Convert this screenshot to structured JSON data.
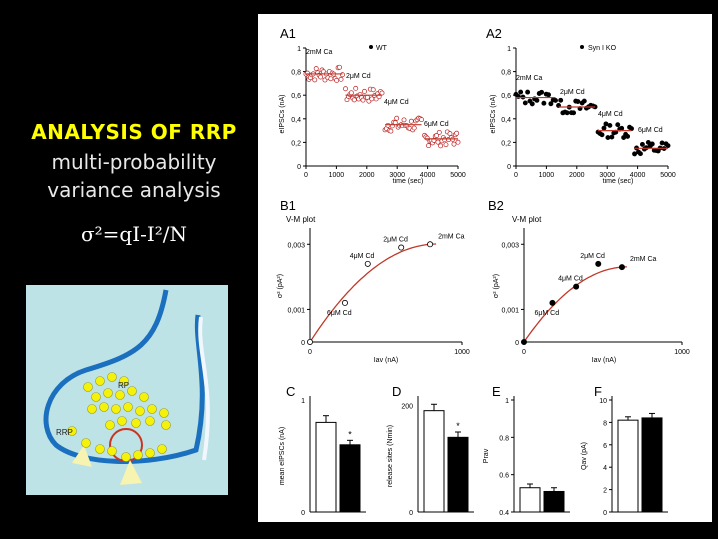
{
  "left": {
    "title": "ANALYSIS OF RRP",
    "subtitle_line1": "multi-probability",
    "subtitle_line2": "variance analysis",
    "formula": "σ²=qI-I²/N",
    "diagram": {
      "rp_label": "RP",
      "rrp_label": "RRP"
    }
  },
  "figure": {
    "panels": {
      "A1": "A1",
      "A2": "A2",
      "B1": "B1",
      "B2": "B2",
      "C": "C",
      "D": "D",
      "E": "E",
      "F": "F"
    },
    "A1_legend": "WT",
    "A2_legend": "Syn I KO",
    "conc_labels": [
      "2mM Ca",
      "2μM Cd",
      "4μM Cd",
      "6μM Cd"
    ],
    "A_xlabel": "time (sec)",
    "A_ylabel": "eIPSCs (nA)",
    "A_xticks": [
      "0",
      "1000",
      "2000",
      "3000",
      "4000",
      "5000"
    ],
    "A1_yticks": [
      "0",
      "0,2",
      "0,4",
      "0,6",
      "0,8",
      "1"
    ],
    "A2_yticks": [
      "0",
      "0,2",
      "0,4",
      "0,6",
      "0,8",
      "1"
    ],
    "B_title": "V-M plot",
    "B_xlabel": "Iav (nA)",
    "B_ylabel": "σ² (pA²)",
    "B_xticks": [
      "0",
      "1000"
    ],
    "B_yticks": [
      "0",
      "0,001",
      "0,003"
    ],
    "C_ylabel": "mean eIPSCs (nA)",
    "D_ylabel": "release sites (Nmin)",
    "D_ytick_top": "200",
    "E_ylabel": "Prav",
    "F_ylabel": "Qav (pA)",
    "star": "*",
    "bar_zero": "0"
  },
  "chart_data": [
    {
      "type": "scatter",
      "panel": "A1",
      "series_label": "WT",
      "xlabel": "time (sec)",
      "ylabel": "eIPSCs (nA)",
      "xlim": [
        0,
        5000
      ],
      "ylim": [
        0,
        1
      ],
      "segments": [
        {
          "label": "2mM Ca",
          "x": [
            0,
            1200
          ],
          "mean": 0.78
        },
        {
          "label": "2μM Cd",
          "x": [
            1300,
            2500
          ],
          "mean": 0.6
        },
        {
          "label": "4μM Cd",
          "x": [
            2600,
            3800
          ],
          "mean": 0.35
        },
        {
          "label": "6μM Cd",
          "x": [
            3900,
            5000
          ],
          "mean": 0.23
        }
      ]
    },
    {
      "type": "scatter",
      "panel": "A2",
      "series_label": "Syn I KO",
      "xlabel": "time (sec)",
      "ylabel": "eIPSCs (nA)",
      "xlim": [
        0,
        5000
      ],
      "ylim": [
        0,
        1
      ],
      "segments": [
        {
          "label": "2mM Ca",
          "x": [
            0,
            1300
          ],
          "mean": 0.58
        },
        {
          "label": "2μM Cd",
          "x": [
            1400,
            2600
          ],
          "mean": 0.5
        },
        {
          "label": "4μM Cd",
          "x": [
            2700,
            3800
          ],
          "mean": 0.3
        },
        {
          "label": "6μM Cd",
          "x": [
            3900,
            5000
          ],
          "mean": 0.15
        }
      ]
    },
    {
      "type": "scatter",
      "panel": "B1",
      "title": "V-M plot",
      "xlabel": "Iav (nA)",
      "ylabel": "σ² (pA²)",
      "xlim": [
        0,
        1000
      ],
      "ylim": [
        0,
        0.0035
      ],
      "points": [
        {
          "label": "",
          "x": 0,
          "y": 0
        },
        {
          "label": "6μM Cd",
          "x": 230,
          "y": 0.0012
        },
        {
          "label": "4μM Cd",
          "x": 380,
          "y": 0.0024
        },
        {
          "label": "2μM Cd",
          "x": 600,
          "y": 0.0029
        },
        {
          "label": "2mM Ca",
          "x": 790,
          "y": 0.003
        }
      ]
    },
    {
      "type": "scatter",
      "panel": "B2",
      "title": "V-M plot",
      "xlabel": "Iav (nA)",
      "ylabel": "σ² (pA²)",
      "xlim": [
        0,
        1000
      ],
      "ylim": [
        0,
        0.0035
      ],
      "points": [
        {
          "label": "",
          "x": 0,
          "y": 0
        },
        {
          "label": "6μM Cd",
          "x": 180,
          "y": 0.0012
        },
        {
          "label": "4μM Cd",
          "x": 330,
          "y": 0.0017
        },
        {
          "label": "2μM Cd",
          "x": 470,
          "y": 0.0024
        },
        {
          "label": "2mM Ca",
          "x": 620,
          "y": 0.0023
        }
      ]
    },
    {
      "type": "bar",
      "panel": "C",
      "ylabel": "mean eIPSCs (nA)",
      "ylim": [
        0,
        1
      ],
      "values": [
        0.8,
        0.6
      ],
      "errors": [
        0.06,
        0.04
      ],
      "significance": [
        false,
        true
      ]
    },
    {
      "type": "bar",
      "panel": "D",
      "ylabel": "release sites (Nmin)",
      "ylim": [
        0,
        210
      ],
      "values": [
        190,
        140
      ],
      "errors": [
        12,
        10
      ],
      "significance": [
        false,
        true
      ]
    },
    {
      "type": "bar",
      "panel": "E",
      "ylabel": "Prav",
      "ylim": [
        0.4,
        1
      ],
      "yticks": [
        0.4,
        0.6,
        0.8,
        1
      ],
      "values": [
        0.53,
        0.51
      ],
      "errors": [
        0.02,
        0.02
      ],
      "significance": [
        false,
        false
      ]
    },
    {
      "type": "bar",
      "panel": "F",
      "ylabel": "Qav (pA)",
      "ylim": [
        0,
        10
      ],
      "yticks": [
        0,
        2,
        4,
        6,
        8,
        10
      ],
      "values": [
        8.2,
        8.4
      ],
      "errors": [
        0.3,
        0.4
      ],
      "significance": [
        false,
        false
      ]
    }
  ]
}
